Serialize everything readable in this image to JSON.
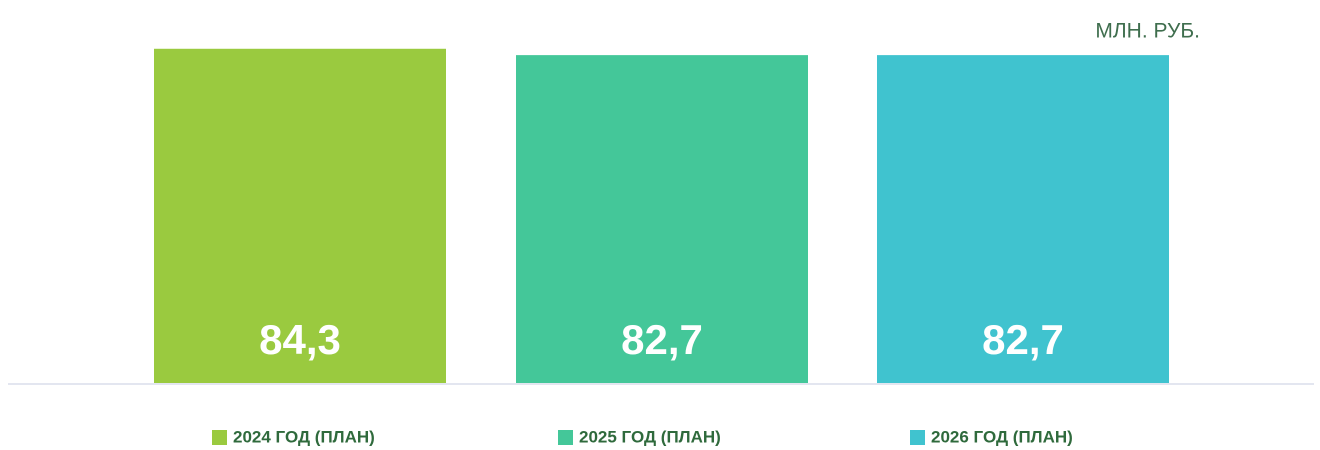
{
  "chart_data": {
    "type": "bar",
    "unit": "МЛН. РУБ.",
    "series": [
      {
        "name": "2024 ГОД (ПЛАН)",
        "color": "#9aca3f",
        "values": [
          84.3
        ],
        "value_labels": [
          "84,3"
        ]
      },
      {
        "name": "2025 ГОД (ПЛАН)",
        "color": "#44c799",
        "values": [
          82.7
        ],
        "value_labels": [
          "82,7"
        ]
      },
      {
        "name": "2026 ГОД (ПЛАН)",
        "color": "#40c3cf",
        "values": [
          82.7
        ],
        "value_labels": [
          "82,7"
        ]
      }
    ],
    "ylim": [
      0,
      85
    ]
  }
}
